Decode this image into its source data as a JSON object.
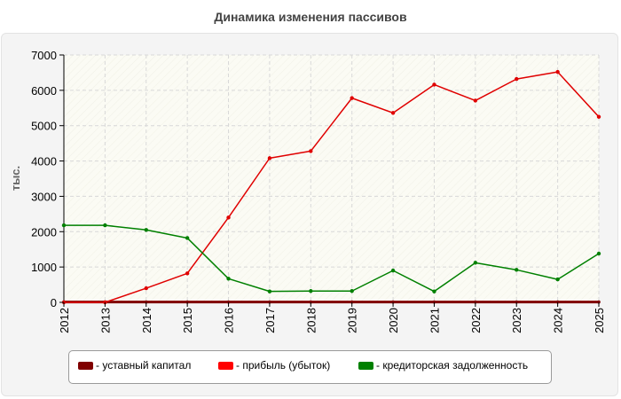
{
  "chart_data": {
    "type": "line",
    "title": "Динамика изменения пассивов",
    "ylabel": "тыс.",
    "xlabel": "",
    "categories": [
      "2012",
      "2013",
      "2014",
      "2015",
      "2016",
      "2017",
      "2018",
      "2019",
      "2020",
      "2021",
      "2022",
      "2023",
      "2024",
      "2025"
    ],
    "ylim": [
      0,
      7000
    ],
    "yticks": [
      0,
      1000,
      2000,
      3000,
      4000,
      5000,
      6000,
      7000
    ],
    "grid": true,
    "legend_position": "bottom",
    "series": [
      {
        "name": "уставный капитал",
        "color": "#800000",
        "values": [
          10,
          10,
          10,
          10,
          10,
          10,
          10,
          10,
          10,
          10,
          10,
          10,
          10,
          10
        ]
      },
      {
        "name": "прибыль (убыток)",
        "color": "#e00000",
        "values": [
          0,
          0,
          400,
          820,
          2400,
          4080,
          4280,
          5780,
          5360,
          6160,
          5710,
          6320,
          6520,
          5250
        ]
      },
      {
        "name": "кредиторская задолженность",
        "color": "#008000",
        "values": [
          2180,
          2180,
          2050,
          1820,
          670,
          310,
          320,
          320,
          900,
          310,
          1120,
          920,
          650,
          1380
        ]
      }
    ]
  },
  "legend": {
    "items": [
      {
        "label": "- уставный капитал",
        "color": "#800000"
      },
      {
        "label": "- прибыль (убыток)",
        "color": "#ff0000"
      },
      {
        "label": "- кредиторская задолженность",
        "color": "#008000"
      }
    ]
  }
}
